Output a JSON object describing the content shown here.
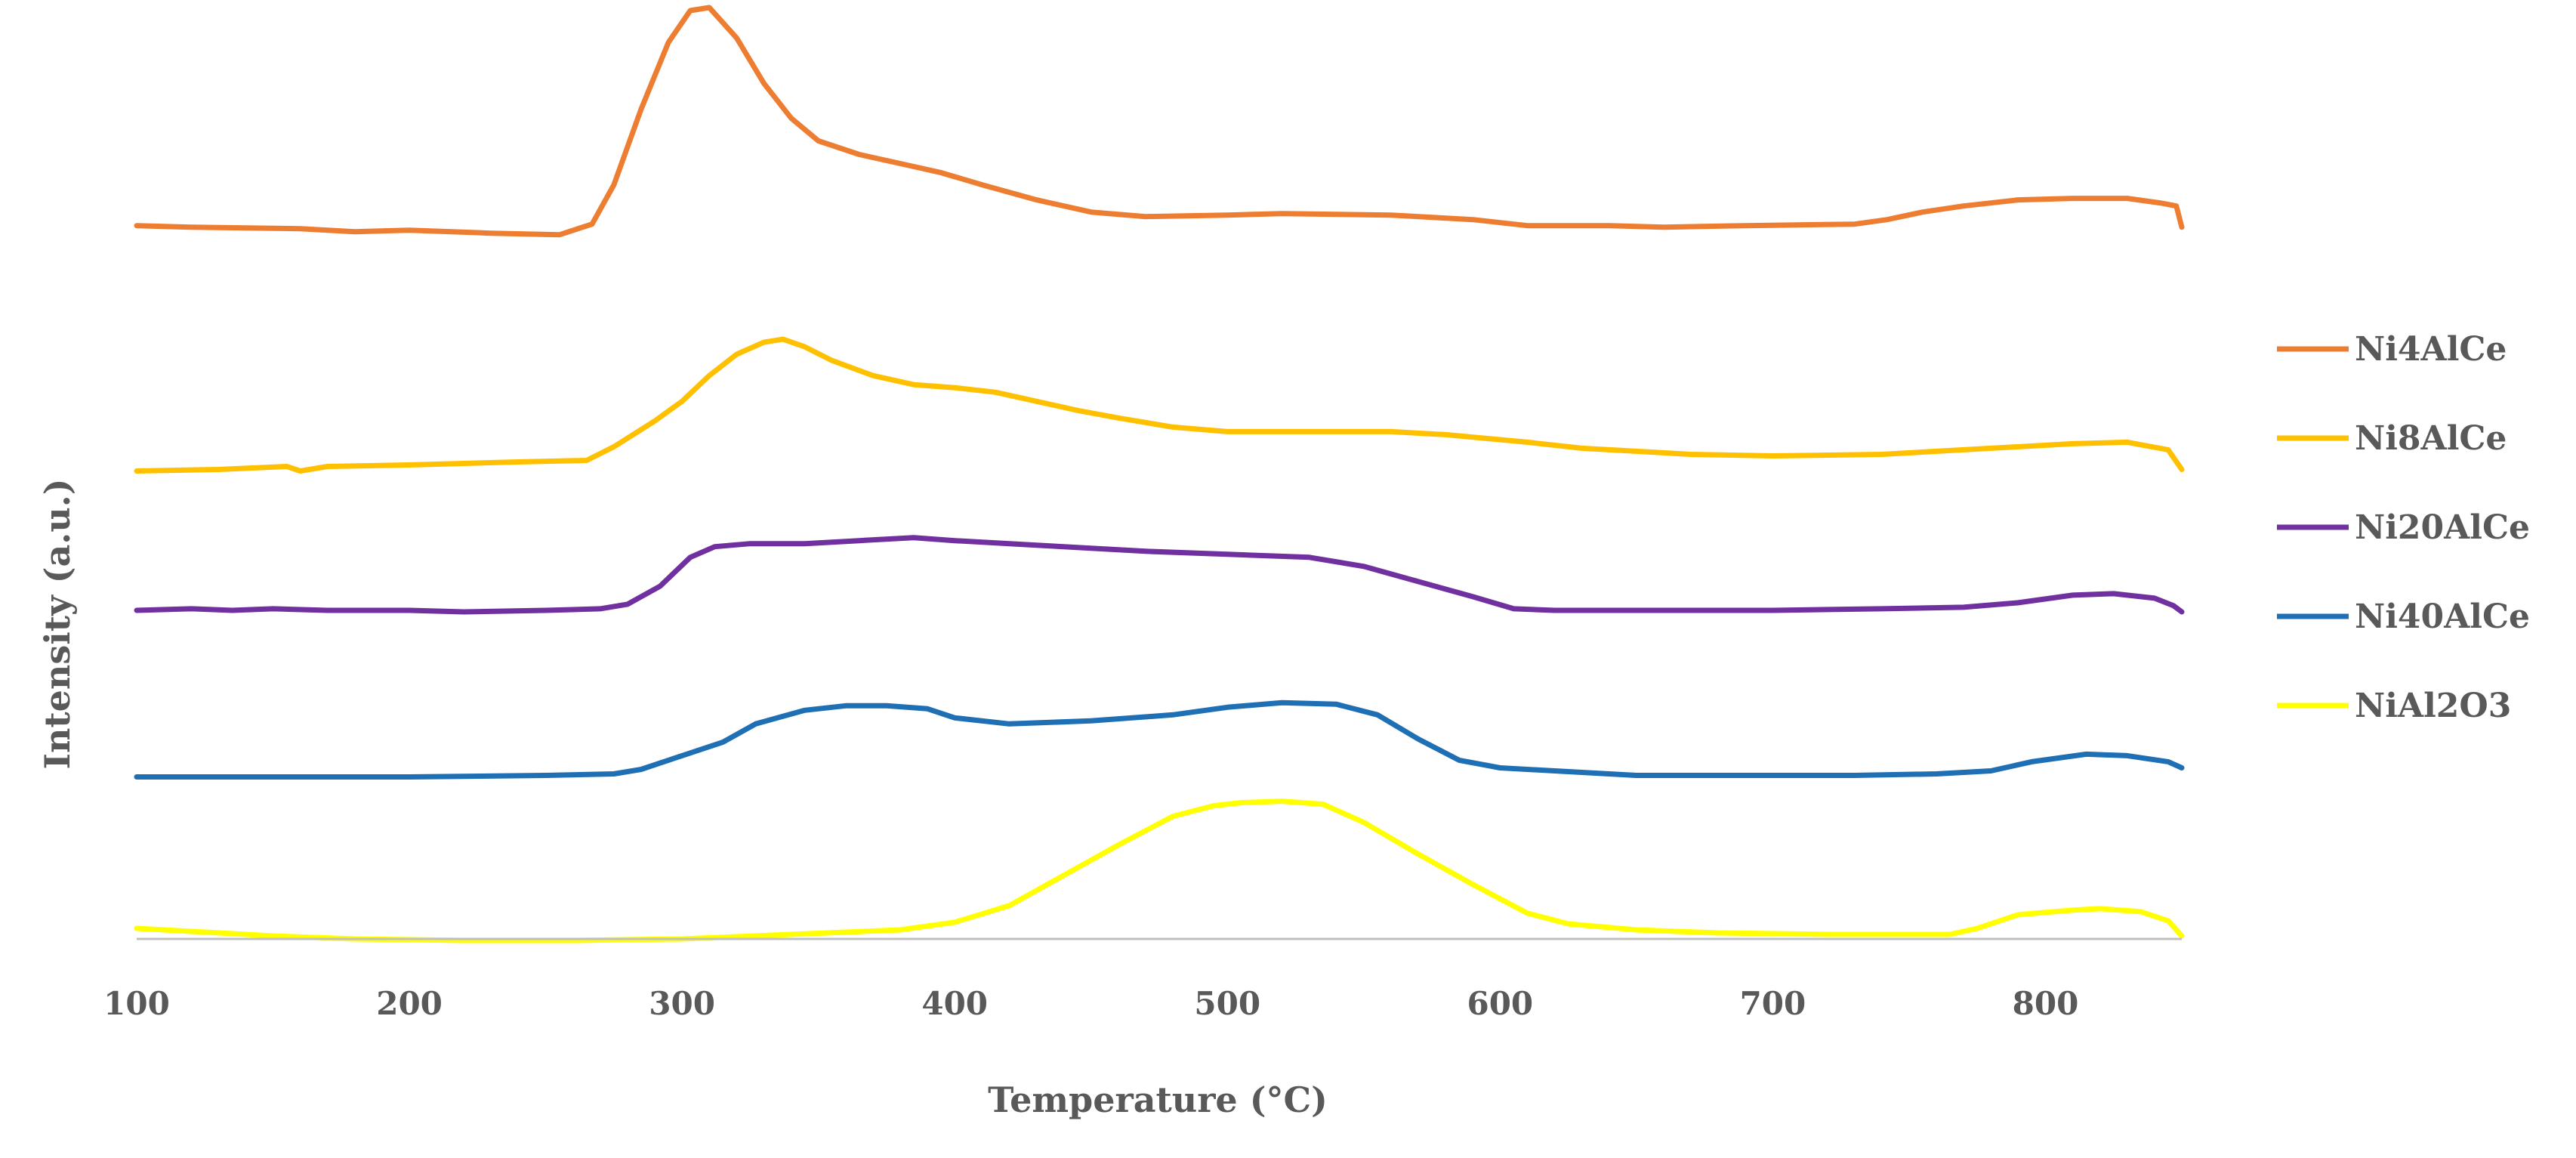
{
  "chart_data": {
    "type": "line",
    "title": "",
    "xlabel": "Temperature (°C)",
    "ylabel": "Intensity (a.u.)",
    "xlim": [
      100,
      850
    ],
    "ylim": [
      0,
      6.2
    ],
    "x_ticks": [
      100,
      200,
      300,
      400,
      500,
      600,
      700,
      800
    ],
    "y_ticks_shown": false,
    "grid": false,
    "legend_position": "right",
    "series": [
      {
        "name": "Ni4AlCe",
        "color": "#ED7D31",
        "points": [
          [
            100,
            4.71
          ],
          [
            120,
            4.7
          ],
          [
            160,
            4.69
          ],
          [
            180,
            4.67
          ],
          [
            200,
            4.68
          ],
          [
            230,
            4.66
          ],
          [
            255,
            4.65
          ],
          [
            267,
            4.72
          ],
          [
            275,
            4.98
          ],
          [
            285,
            5.48
          ],
          [
            295,
            5.92
          ],
          [
            303,
            6.13
          ],
          [
            310,
            6.15
          ],
          [
            320,
            5.95
          ],
          [
            330,
            5.65
          ],
          [
            340,
            5.42
          ],
          [
            350,
            5.27
          ],
          [
            365,
            5.18
          ],
          [
            380,
            5.12
          ],
          [
            395,
            5.06
          ],
          [
            410,
            4.98
          ],
          [
            430,
            4.88
          ],
          [
            450,
            4.8
          ],
          [
            470,
            4.77
          ],
          [
            500,
            4.78
          ],
          [
            520,
            4.79
          ],
          [
            560,
            4.78
          ],
          [
            590,
            4.75
          ],
          [
            610,
            4.71
          ],
          [
            640,
            4.71
          ],
          [
            660,
            4.7
          ],
          [
            690,
            4.71
          ],
          [
            730,
            4.72
          ],
          [
            742,
            4.75
          ],
          [
            755,
            4.8
          ],
          [
            770,
            4.84
          ],
          [
            790,
            4.88
          ],
          [
            810,
            4.89
          ],
          [
            830,
            4.89
          ],
          [
            842,
            4.86
          ],
          [
            848,
            4.84
          ],
          [
            850,
            4.7
          ]
        ]
      },
      {
        "name": "Ni8AlCe",
        "color": "#FFC000",
        "points": [
          [
            100,
            3.09
          ],
          [
            130,
            3.1
          ],
          [
            155,
            3.12
          ],
          [
            160,
            3.09
          ],
          [
            170,
            3.12
          ],
          [
            200,
            3.13
          ],
          [
            240,
            3.15
          ],
          [
            265,
            3.16
          ],
          [
            275,
            3.25
          ],
          [
            290,
            3.42
          ],
          [
            300,
            3.55
          ],
          [
            310,
            3.72
          ],
          [
            320,
            3.86
          ],
          [
            330,
            3.94
          ],
          [
            337,
            3.96
          ],
          [
            345,
            3.91
          ],
          [
            355,
            3.82
          ],
          [
            370,
            3.72
          ],
          [
            385,
            3.66
          ],
          [
            400,
            3.64
          ],
          [
            415,
            3.61
          ],
          [
            430,
            3.55
          ],
          [
            445,
            3.49
          ],
          [
            460,
            3.44
          ],
          [
            480,
            3.38
          ],
          [
            500,
            3.35
          ],
          [
            520,
            3.35
          ],
          [
            560,
            3.35
          ],
          [
            580,
            3.33
          ],
          [
            610,
            3.28
          ],
          [
            630,
            3.24
          ],
          [
            650,
            3.22
          ],
          [
            670,
            3.2
          ],
          [
            700,
            3.19
          ],
          [
            740,
            3.2
          ],
          [
            780,
            3.24
          ],
          [
            810,
            3.27
          ],
          [
            830,
            3.28
          ],
          [
            845,
            3.23
          ],
          [
            850,
            3.1
          ]
        ]
      },
      {
        "name": "Ni20AlCe",
        "color": "#7030A0",
        "points": [
          [
            100,
            2.17
          ],
          [
            120,
            2.18
          ],
          [
            135,
            2.17
          ],
          [
            150,
            2.18
          ],
          [
            170,
            2.17
          ],
          [
            200,
            2.17
          ],
          [
            220,
            2.16
          ],
          [
            250,
            2.17
          ],
          [
            270,
            2.18
          ],
          [
            280,
            2.21
          ],
          [
            292,
            2.33
          ],
          [
            303,
            2.52
          ],
          [
            312,
            2.59
          ],
          [
            325,
            2.61
          ],
          [
            345,
            2.61
          ],
          [
            365,
            2.63
          ],
          [
            385,
            2.65
          ],
          [
            400,
            2.63
          ],
          [
            430,
            2.6
          ],
          [
            470,
            2.56
          ],
          [
            500,
            2.54
          ],
          [
            530,
            2.52
          ],
          [
            550,
            2.46
          ],
          [
            570,
            2.36
          ],
          [
            590,
            2.26
          ],
          [
            605,
            2.18
          ],
          [
            620,
            2.17
          ],
          [
            650,
            2.17
          ],
          [
            700,
            2.17
          ],
          [
            740,
            2.18
          ],
          [
            770,
            2.19
          ],
          [
            790,
            2.22
          ],
          [
            810,
            2.27
          ],
          [
            825,
            2.28
          ],
          [
            840,
            2.25
          ],
          [
            847,
            2.2
          ],
          [
            850,
            2.16
          ]
        ]
      },
      {
        "name": "Ni40AlCe",
        "color": "#1F6FB5",
        "points": [
          [
            100,
            1.07
          ],
          [
            150,
            1.07
          ],
          [
            200,
            1.07
          ],
          [
            250,
            1.08
          ],
          [
            275,
            1.09
          ],
          [
            285,
            1.12
          ],
          [
            300,
            1.21
          ],
          [
            315,
            1.3
          ],
          [
            327,
            1.42
          ],
          [
            345,
            1.51
          ],
          [
            360,
            1.54
          ],
          [
            375,
            1.54
          ],
          [
            390,
            1.52
          ],
          [
            400,
            1.46
          ],
          [
            420,
            1.42
          ],
          [
            450,
            1.44
          ],
          [
            480,
            1.48
          ],
          [
            500,
            1.53
          ],
          [
            520,
            1.56
          ],
          [
            540,
            1.55
          ],
          [
            555,
            1.48
          ],
          [
            570,
            1.32
          ],
          [
            585,
            1.18
          ],
          [
            600,
            1.13
          ],
          [
            620,
            1.11
          ],
          [
            650,
            1.08
          ],
          [
            700,
            1.08
          ],
          [
            730,
            1.08
          ],
          [
            760,
            1.09
          ],
          [
            780,
            1.11
          ],
          [
            795,
            1.17
          ],
          [
            815,
            1.22
          ],
          [
            830,
            1.21
          ],
          [
            845,
            1.17
          ],
          [
            850,
            1.13
          ]
        ]
      },
      {
        "name": "NiAl2O3",
        "color": "#FFFF00",
        "points": [
          [
            100,
            0.07
          ],
          [
            120,
            0.05
          ],
          [
            150,
            0.02
          ],
          [
            180,
            0.0
          ],
          [
            220,
            -0.01
          ],
          [
            260,
            -0.01
          ],
          [
            300,
            0.0
          ],
          [
            340,
            0.03
          ],
          [
            380,
            0.06
          ],
          [
            400,
            0.11
          ],
          [
            420,
            0.22
          ],
          [
            440,
            0.42
          ],
          [
            460,
            0.62
          ],
          [
            480,
            0.81
          ],
          [
            495,
            0.88
          ],
          [
            505,
            0.9
          ],
          [
            520,
            0.91
          ],
          [
            535,
            0.89
          ],
          [
            550,
            0.77
          ],
          [
            570,
            0.56
          ],
          [
            590,
            0.36
          ],
          [
            610,
            0.17
          ],
          [
            625,
            0.1
          ],
          [
            650,
            0.06
          ],
          [
            680,
            0.04
          ],
          [
            720,
            0.03
          ],
          [
            765,
            0.03
          ],
          [
            775,
            0.07
          ],
          [
            790,
            0.16
          ],
          [
            810,
            0.19
          ],
          [
            820,
            0.2
          ],
          [
            835,
            0.18
          ],
          [
            845,
            0.12
          ],
          [
            850,
            0.02
          ]
        ]
      }
    ]
  }
}
